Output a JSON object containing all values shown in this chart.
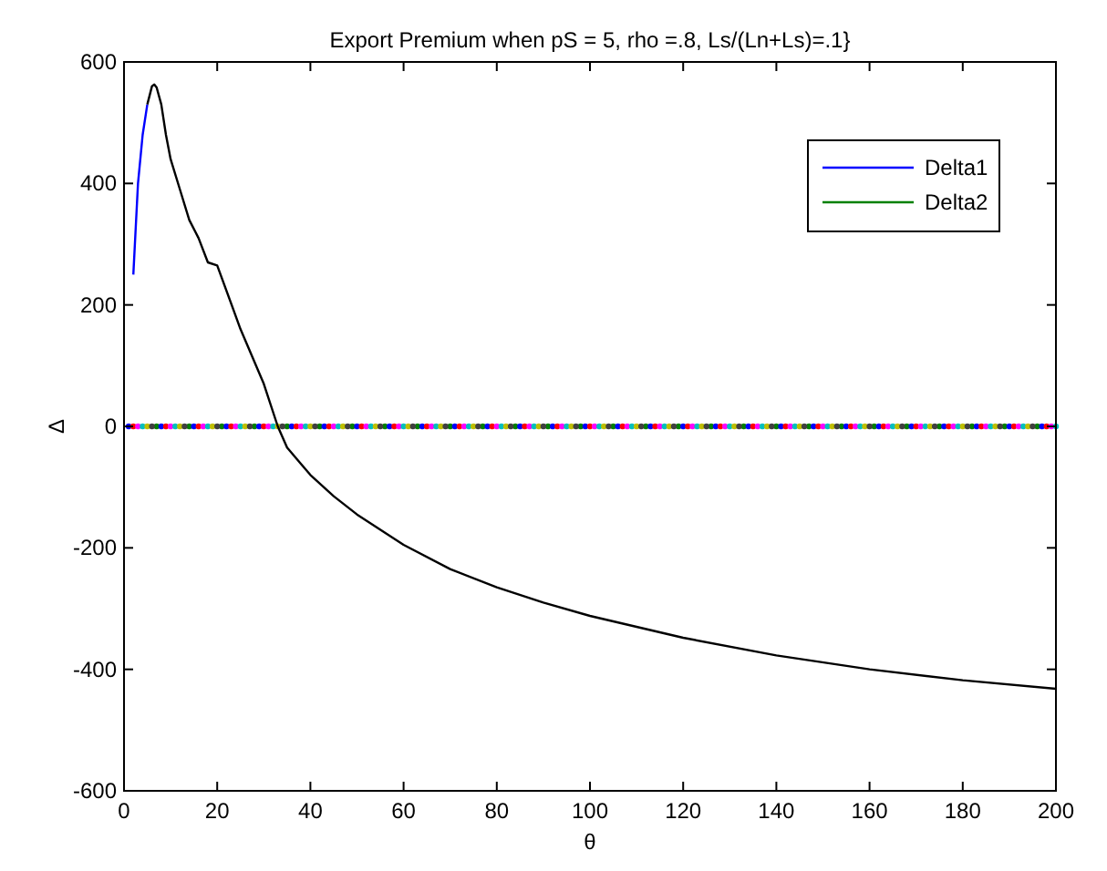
{
  "chart_data": {
    "type": "scatter",
    "title": "Export Premium when pS = 5, rho =.8, Ls/(Ln+Ls)=.1}",
    "xlabel": "θ",
    "ylabel": "Δ",
    "xlim": [
      0,
      200
    ],
    "xticks": [
      0,
      20,
      40,
      60,
      80,
      100,
      120,
      140,
      160,
      180,
      200
    ],
    "ylim": [
      -600,
      600
    ],
    "yticks": [
      -600,
      -400,
      -200,
      0,
      200,
      400,
      600
    ],
    "legend": "top right",
    "line_style": "solid",
    "marker": "circle",
    "series": [
      {
        "name": "Delta1",
        "color": "#0000ff",
        "type": "line",
        "marker": "none",
        "x": [
          2,
          3,
          4,
          5
        ],
        "values": [
          250,
          400,
          480,
          530
        ]
      },
      {
        "name": "Delta2",
        "color": "#008000",
        "x": [
          7,
          14,
          21,
          28,
          35,
          42,
          49,
          56,
          63,
          70,
          77,
          84,
          91,
          98,
          105,
          112,
          119,
          126,
          133,
          140,
          147,
          154,
          161,
          168,
          175,
          182,
          189,
          196
        ],
        "values": [
          0,
          0,
          0,
          0,
          0,
          0,
          0,
          0,
          0,
          0,
          0,
          0,
          0,
          0,
          0,
          0,
          0,
          0,
          0,
          0,
          0,
          0,
          0,
          0,
          0,
          0,
          0,
          0
        ]
      },
      {
        "color": "#0000ff",
        "x": [
          1,
          8,
          15,
          22,
          29,
          36,
          43,
          50,
          57,
          64,
          71,
          78,
          85,
          92,
          99,
          106,
          113,
          120,
          127,
          134,
          141,
          148,
          155,
          162,
          169,
          176,
          183,
          190,
          197
        ],
        "values": [
          0,
          0,
          0,
          0,
          0,
          0,
          0,
          0,
          0,
          0,
          0,
          0,
          0,
          0,
          0,
          0,
          0,
          0,
          0,
          0,
          0,
          0,
          0,
          0,
          0,
          0,
          0,
          0,
          0
        ]
      },
      {
        "color": "#ff0000",
        "x": [
          2,
          9,
          16,
          23,
          30,
          37,
          44,
          51,
          58,
          65,
          72,
          79,
          86,
          93,
          100,
          107,
          114,
          121,
          128,
          135,
          142,
          149,
          156,
          163,
          170,
          177,
          184,
          191,
          198
        ],
        "values": [
          0,
          0,
          0,
          0,
          0,
          0,
          0,
          0,
          0,
          0,
          0,
          0,
          0,
          0,
          0,
          0,
          0,
          0,
          0,
          0,
          0,
          0,
          0,
          0,
          0,
          0,
          0,
          0,
          0
        ]
      },
      {
        "color": "#ff00ff",
        "x": [
          3,
          10,
          17,
          24,
          31,
          38,
          45,
          52,
          59,
          66,
          73,
          80,
          87,
          94,
          101,
          108,
          115,
          122,
          129,
          136,
          143,
          150,
          157,
          164,
          171,
          178,
          185,
          192,
          199
        ],
        "values": [
          0,
          0,
          0,
          0,
          0,
          0,
          0,
          0,
          0,
          0,
          0,
          0,
          0,
          0,
          0,
          0,
          0,
          0,
          0,
          0,
          0,
          0,
          0,
          0,
          0,
          0,
          0,
          0,
          0
        ]
      },
      {
        "color": "#00bfbf",
        "x": [
          4,
          11,
          18,
          25,
          32,
          39,
          46,
          53,
          60,
          67,
          74,
          81,
          88,
          95,
          102,
          109,
          116,
          123,
          130,
          137,
          144,
          151,
          158,
          165,
          172,
          179,
          186,
          193,
          200
        ],
        "values": [
          0,
          0,
          0,
          0,
          0,
          0,
          0,
          0,
          0,
          0,
          0,
          0,
          0,
          0,
          0,
          0,
          0,
          0,
          0,
          0,
          0,
          0,
          0,
          0,
          0,
          0,
          0,
          0,
          0
        ]
      },
      {
        "color": "#bfbf00",
        "x": [
          5,
          12,
          19,
          26,
          33,
          40,
          47,
          54,
          61,
          68,
          75,
          82,
          89,
          96,
          103,
          110,
          117,
          124,
          131,
          138,
          145,
          152,
          159,
          166,
          173,
          180,
          187,
          194
        ],
        "values": [
          0,
          0,
          0,
          0,
          0,
          0,
          0,
          0,
          0,
          0,
          0,
          0,
          0,
          0,
          0,
          0,
          0,
          0,
          0,
          0,
          0,
          0,
          0,
          0,
          0,
          0,
          0,
          0
        ]
      },
      {
        "color": "#404040",
        "x": [
          6,
          13,
          20,
          27,
          34,
          41,
          48,
          55,
          62,
          69,
          76,
          83,
          90,
          97,
          104,
          111,
          118,
          125,
          132,
          139,
          146,
          153,
          160,
          167,
          174,
          181,
          188,
          195
        ],
        "values": [
          0,
          0,
          0,
          0,
          0,
          0,
          0,
          0,
          0,
          0,
          0,
          0,
          0,
          0,
          0,
          0,
          0,
          0,
          0,
          0,
          0,
          0,
          0,
          0,
          0,
          0,
          0,
          0
        ]
      },
      {
        "color": "#000000",
        "type": "line",
        "marker": "none",
        "x": [
          5,
          6,
          6.5,
          7,
          8,
          9,
          10,
          12,
          14,
          16,
          18,
          20,
          25,
          30,
          33,
          35,
          40,
          45,
          50,
          60,
          70,
          80,
          90,
          100,
          120,
          140,
          160,
          180,
          200
        ],
        "values": [
          530,
          560,
          563,
          558,
          530,
          480,
          440,
          390,
          340,
          310,
          270,
          265,
          160,
          70,
          0,
          -35,
          -80,
          -115,
          -145,
          -195,
          -235,
          -265,
          -290,
          -312,
          -348,
          -377,
          -400,
          -418,
          -432
        ]
      }
    ]
  }
}
